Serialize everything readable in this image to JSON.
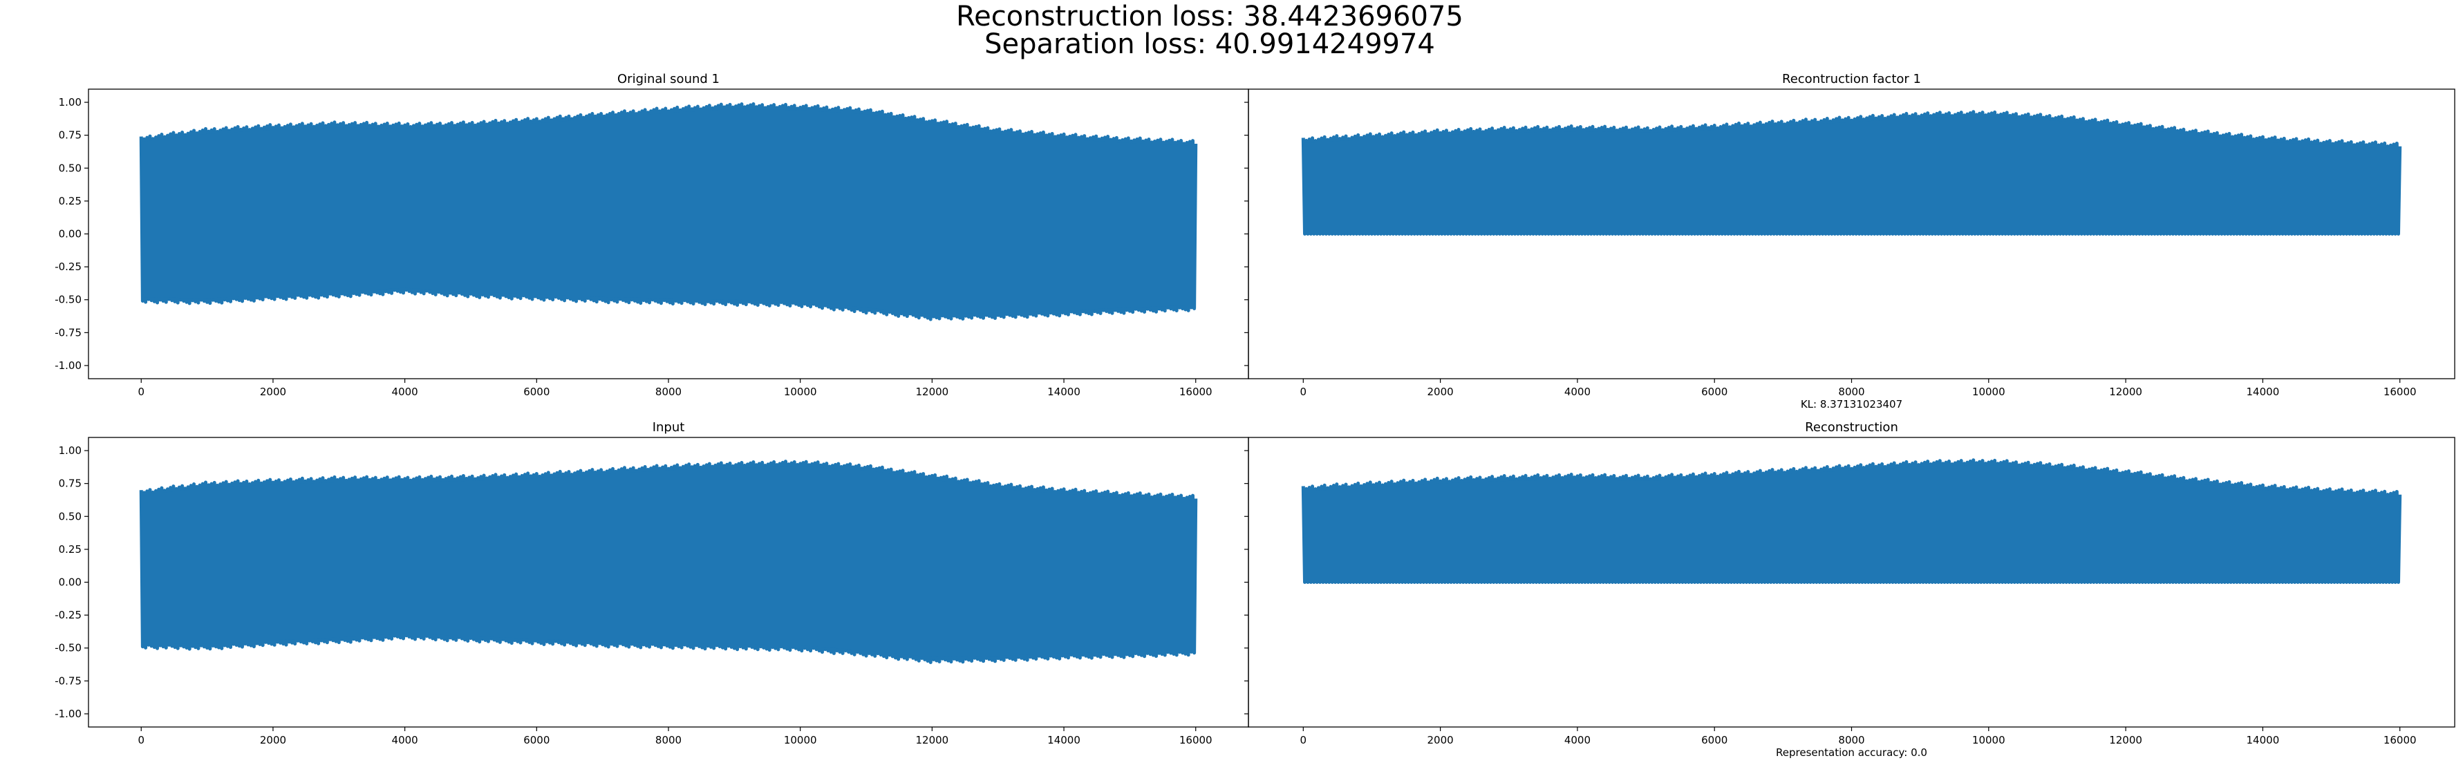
{
  "figure": {
    "suptitle_line1": "Reconstruction loss: 38.4423696075",
    "suptitle_line2": "Separation loss: 40.9914249974",
    "color": "#1f77b4"
  },
  "chart_data": [
    {
      "type": "area",
      "title": "Original sound 1",
      "xlabel": "",
      "ylabel": "",
      "xlim": [
        -800,
        16800
      ],
      "ylim": [
        -1.1,
        1.1
      ],
      "xticks": [
        "0",
        "2000",
        "4000",
        "6000",
        "8000",
        "10000",
        "12000",
        "14000",
        "16000"
      ],
      "yticks": [
        "1.00",
        "0.75",
        "0.50",
        "0.25",
        "0.00",
        "-0.25",
        "-0.50",
        "-0.75",
        "-1.00"
      ],
      "grid": false,
      "series": [
        {
          "x": [
            0,
            1000,
            2000,
            3000,
            4000,
            5000,
            6000,
            7000,
            8000,
            9000,
            10000,
            11000,
            12000,
            13000,
            14000,
            15000,
            16000
          ],
          "upper_envelope": [
            0.74,
            0.8,
            0.83,
            0.85,
            0.84,
            0.85,
            0.88,
            0.92,
            0.96,
            0.99,
            0.98,
            0.95,
            0.87,
            0.8,
            0.76,
            0.73,
            0.71
          ],
          "lower_envelope": [
            -0.52,
            -0.53,
            -0.5,
            -0.48,
            -0.45,
            -0.48,
            -0.5,
            -0.52,
            -0.53,
            -0.54,
            -0.55,
            -0.6,
            -0.65,
            -0.64,
            -0.62,
            -0.6,
            -0.58
          ]
        }
      ]
    },
    {
      "type": "area",
      "title": "Recontruction factor 1",
      "xlabel": "KL: 8.37131023407",
      "ylabel": "",
      "xlim": [
        -800,
        16800
      ],
      "ylim": [
        -1.1,
        1.1
      ],
      "xticks": [
        "0",
        "2000",
        "4000",
        "6000",
        "8000",
        "10000",
        "12000",
        "14000",
        "16000"
      ],
      "yticks": [],
      "grid": false,
      "series": [
        {
          "x": [
            0,
            1000,
            2000,
            3000,
            4000,
            5000,
            6000,
            7000,
            8000,
            9000,
            10000,
            11000,
            12000,
            13000,
            14000,
            15000,
            16000
          ],
          "upper_envelope": [
            0.73,
            0.76,
            0.79,
            0.81,
            0.82,
            0.81,
            0.83,
            0.86,
            0.89,
            0.92,
            0.93,
            0.9,
            0.85,
            0.79,
            0.74,
            0.71,
            0.69
          ],
          "lower_envelope": [
            0.0,
            0.0,
            0.0,
            0.0,
            0.0,
            0.0,
            0.0,
            0.0,
            0.0,
            0.0,
            0.0,
            0.0,
            0.0,
            0.0,
            0.0,
            0.0,
            0.0
          ]
        }
      ]
    },
    {
      "type": "area",
      "title": "Input",
      "xlabel": "",
      "ylabel": "",
      "xlim": [
        -800,
        16800
      ],
      "ylim": [
        -1.1,
        1.1
      ],
      "xticks": [
        "0",
        "2000",
        "4000",
        "6000",
        "8000",
        "10000",
        "12000",
        "14000",
        "16000"
      ],
      "yticks": [
        "1.00",
        "0.75",
        "0.50",
        "0.25",
        "0.00",
        "-0.25",
        "-0.50",
        "-0.75",
        "-1.00"
      ],
      "grid": false,
      "series": [
        {
          "x": [
            0,
            1000,
            2000,
            3000,
            4000,
            5000,
            6000,
            7000,
            8000,
            9000,
            10000,
            11000,
            12000,
            13000,
            14000,
            15000,
            16000
          ],
          "upper_envelope": [
            0.7,
            0.76,
            0.78,
            0.8,
            0.8,
            0.81,
            0.83,
            0.86,
            0.89,
            0.91,
            0.92,
            0.89,
            0.82,
            0.75,
            0.71,
            0.68,
            0.66
          ],
          "lower_envelope": [
            -0.5,
            -0.51,
            -0.48,
            -0.46,
            -0.43,
            -0.45,
            -0.47,
            -0.49,
            -0.5,
            -0.51,
            -0.52,
            -0.56,
            -0.61,
            -0.6,
            -0.58,
            -0.57,
            -0.55
          ]
        }
      ]
    },
    {
      "type": "area",
      "title": "Reconstruction",
      "xlabel": "Representation accuracy: 0.0",
      "ylabel": "",
      "xlim": [
        -800,
        16800
      ],
      "ylim": [
        -1.1,
        1.1
      ],
      "xticks": [
        "0",
        "2000",
        "4000",
        "6000",
        "8000",
        "10000",
        "12000",
        "14000",
        "16000"
      ],
      "yticks": [],
      "grid": false,
      "series": [
        {
          "x": [
            0,
            1000,
            2000,
            3000,
            4000,
            5000,
            6000,
            7000,
            8000,
            9000,
            10000,
            11000,
            12000,
            13000,
            14000,
            15000,
            16000
          ],
          "upper_envelope": [
            0.73,
            0.76,
            0.79,
            0.81,
            0.82,
            0.81,
            0.83,
            0.86,
            0.89,
            0.92,
            0.93,
            0.9,
            0.85,
            0.79,
            0.74,
            0.71,
            0.69
          ],
          "lower_envelope": [
            0.0,
            0.0,
            0.0,
            0.0,
            0.0,
            0.0,
            0.0,
            0.0,
            0.0,
            0.0,
            0.0,
            0.0,
            0.0,
            0.0,
            0.0,
            0.0,
            0.0
          ]
        }
      ]
    }
  ]
}
